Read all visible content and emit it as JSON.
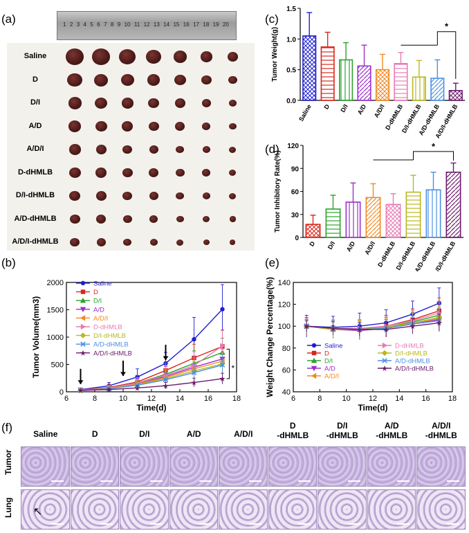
{
  "panels": {
    "a": "(a)",
    "b": "(b)",
    "c": "(c)",
    "d": "(d)",
    "e": "(e)",
    "f": "(f)"
  },
  "ruler": {
    "ticks": [
      "1",
      "2",
      "3",
      "4",
      "5",
      "6",
      "7",
      "8",
      "9",
      "10",
      "11",
      "12",
      "13",
      "14",
      "15",
      "16",
      "17",
      "18",
      "19",
      "20"
    ]
  },
  "photo_rows": [
    "Saline",
    "D",
    "D/I",
    "A/D",
    "A/D/I",
    "D-dHMLB",
    "D/I-dHMLB",
    "A/D-dHMLB",
    "A/D/I-dHMLB"
  ],
  "chart_data": [
    {
      "id": "c",
      "type": "bar",
      "ylabel": "Tumor Weight(g)",
      "ylim": [
        0,
        1.5
      ],
      "yticks": [
        "0.0",
        "0.5",
        "1.0",
        "1.5"
      ],
      "categories": [
        "Saline",
        "D",
        "D/I",
        "A/D",
        "A/D/I",
        "D-dHMLB",
        "D/I-dHMLB",
        "A/D-dHMLB",
        "A/D/I-dHMLB"
      ],
      "values": [
        1.05,
        0.87,
        0.66,
        0.56,
        0.5,
        0.6,
        0.38,
        0.36,
        0.16
      ],
      "errors": [
        0.38,
        0.24,
        0.28,
        0.34,
        0.25,
        0.18,
        0.27,
        0.3,
        0.12
      ],
      "annotation": "*",
      "colors": [
        "#1f1fd1",
        "#d9261c",
        "#2aa32a",
        "#9b2fc9",
        "#f08a24",
        "#e87bb5",
        "#b8b820",
        "#4a90e2",
        "#6a1a6a"
      ]
    },
    {
      "id": "d",
      "type": "bar",
      "ylabel": "Tumor Inhibitory Rate(%)",
      "ylim": [
        0,
        120
      ],
      "yticks": [
        "0",
        "30",
        "60",
        "90",
        "120"
      ],
      "categories": [
        "D",
        "D/I",
        "A/D",
        "A/D/I",
        "D-dHMLB",
        "D/I-dHMLB",
        "A/D-dHMLB",
        "A/D/I-dHMLB"
      ],
      "values": [
        17,
        37,
        46,
        52,
        43,
        59,
        62,
        85
      ],
      "errors": [
        12,
        18,
        25,
        18,
        14,
        22,
        23,
        12
      ],
      "annotation": "*",
      "colors": [
        "#d9261c",
        "#2aa32a",
        "#9b2fc9",
        "#f08a24",
        "#e87bb5",
        "#b8b820",
        "#4a90e2",
        "#6a1a6a"
      ]
    },
    {
      "id": "b",
      "type": "line",
      "xlabel": "Time(d)",
      "ylabel": "Tumor Volume(mm3)",
      "xlim": [
        6,
        18
      ],
      "ylim": [
        0,
        2000
      ],
      "xticks": [
        "6",
        "8",
        "10",
        "12",
        "14",
        "16",
        "18"
      ],
      "yticks": [
        "0",
        "500",
        "1000",
        "1500",
        "2000"
      ],
      "x": [
        7,
        9,
        11,
        13,
        15,
        17
      ],
      "arrows_at_day": [
        7,
        10,
        13
      ],
      "annotation": "*",
      "series": [
        {
          "name": "Saline",
          "color": "#1f1fd1",
          "marker": "circle",
          "values": [
            40,
            110,
            270,
            520,
            960,
            1510
          ],
          "errors": [
            20,
            60,
            150,
            200,
            400,
            450
          ]
        },
        {
          "name": "D",
          "color": "#d9261c",
          "marker": "square",
          "values": [
            35,
            80,
            180,
            390,
            620,
            830
          ],
          "errors": [
            20,
            50,
            120,
            250,
            250,
            300
          ]
        },
        {
          "name": "D/I",
          "color": "#2aa32a",
          "marker": "triangle",
          "values": [
            30,
            70,
            160,
            320,
            520,
            720
          ],
          "errors": [
            15,
            45,
            100,
            200,
            230,
            260
          ]
        },
        {
          "name": "A/D",
          "color": "#9b2fc9",
          "marker": "tri-down",
          "values": [
            30,
            65,
            150,
            280,
            450,
            600
          ],
          "errors": [
            15,
            40,
            90,
            180,
            200,
            250
          ]
        },
        {
          "name": "A/D/I",
          "color": "#f08a24",
          "marker": "tri-left",
          "values": [
            30,
            60,
            140,
            260,
            420,
            560
          ],
          "errors": [
            15,
            40,
            80,
            150,
            200,
            220
          ]
        },
        {
          "name": "D-dHMLB",
          "color": "#e87bb5",
          "marker": "tri-right",
          "values": [
            32,
            70,
            160,
            300,
            480,
            840
          ],
          "errors": [
            15,
            45,
            100,
            180,
            250,
            280
          ]
        },
        {
          "name": "D/I-dHMLB",
          "color": "#b8b820",
          "marker": "diamond",
          "values": [
            30,
            60,
            130,
            240,
            380,
            510
          ],
          "errors": [
            15,
            35,
            80,
            140,
            180,
            200
          ]
        },
        {
          "name": "A/D-dHMLB",
          "color": "#4a90e2",
          "marker": "x",
          "values": [
            30,
            55,
            120,
            220,
            350,
            490
          ],
          "errors": [
            15,
            35,
            70,
            130,
            160,
            190
          ]
        },
        {
          "name": "A/D/I-dHMLB",
          "color": "#6a1a6a",
          "marker": "star",
          "values": [
            25,
            40,
            70,
            110,
            170,
            240
          ],
          "errors": [
            10,
            20,
            40,
            60,
            80,
            100
          ]
        }
      ]
    },
    {
      "id": "e",
      "type": "line",
      "xlabel": "Time(d)",
      "ylabel": "Weight Change Percentage(%)",
      "xlim": [
        6,
        18
      ],
      "ylim": [
        40,
        140
      ],
      "xticks": [
        "6",
        "8",
        "10",
        "12",
        "14",
        "16",
        "18"
      ],
      "yticks": [
        "40",
        "60",
        "80",
        "100",
        "120",
        "140"
      ],
      "x": [
        7,
        9,
        11,
        13,
        15,
        17
      ],
      "series": [
        {
          "name": "Saline",
          "color": "#1f1fd1",
          "marker": "circle",
          "values": [
            100,
            99,
            100,
            103,
            111,
            121
          ],
          "errors": [
            10,
            10,
            12,
            12,
            12,
            14
          ]
        },
        {
          "name": "D",
          "color": "#d9261c",
          "marker": "square",
          "values": [
            100,
            97,
            97,
            100,
            106,
            114
          ],
          "errors": [
            8,
            8,
            9,
            10,
            10,
            12
          ]
        },
        {
          "name": "D/I",
          "color": "#2aa32a",
          "marker": "triangle",
          "values": [
            100,
            97,
            97,
            99,
            104,
            110
          ],
          "errors": [
            7,
            8,
            8,
            9,
            10,
            11
          ]
        },
        {
          "name": "A/D",
          "color": "#9b2fc9",
          "marker": "tri-down",
          "values": [
            100,
            97,
            96,
            98,
            102,
            106
          ],
          "errors": [
            6,
            7,
            8,
            8,
            9,
            10
          ]
        },
        {
          "name": "A/D/I",
          "color": "#f08a24",
          "marker": "tri-left",
          "values": [
            100,
            98,
            97,
            98,
            103,
            107
          ],
          "errors": [
            6,
            7,
            8,
            8,
            9,
            10
          ]
        },
        {
          "name": "D-dHMLB",
          "color": "#e87bb5",
          "marker": "tri-right",
          "values": [
            100,
            98,
            98,
            100,
            105,
            112
          ],
          "errors": [
            7,
            8,
            8,
            9,
            10,
            11
          ]
        },
        {
          "name": "D/I-dHMLB",
          "color": "#b8b820",
          "marker": "diamond",
          "values": [
            100,
            97,
            97,
            99,
            103,
            108
          ],
          "errors": [
            6,
            7,
            8,
            8,
            9,
            10
          ]
        },
        {
          "name": "A/D-dHMLB",
          "color": "#4a90e2",
          "marker": "x",
          "values": [
            100,
            98,
            97,
            98,
            102,
            105
          ],
          "errors": [
            6,
            7,
            7,
            8,
            8,
            9
          ]
        },
        {
          "name": "A/D/I-dHMLB",
          "color": "#6a1a6a",
          "marker": "star",
          "values": [
            100,
            98,
            97,
            97,
            100,
            103
          ],
          "errors": [
            5,
            6,
            6,
            7,
            7,
            8
          ]
        }
      ]
    }
  ],
  "histology": {
    "columns": [
      "Saline",
      "D",
      "D/I",
      "A/D",
      "A/D/I",
      "D\n-dHMLB",
      "D/I\n-dHMLB",
      "A/D\n-dHMLB",
      "A/D/I\n-dHMLB"
    ],
    "rows": [
      "Tumor",
      "Lung"
    ]
  }
}
